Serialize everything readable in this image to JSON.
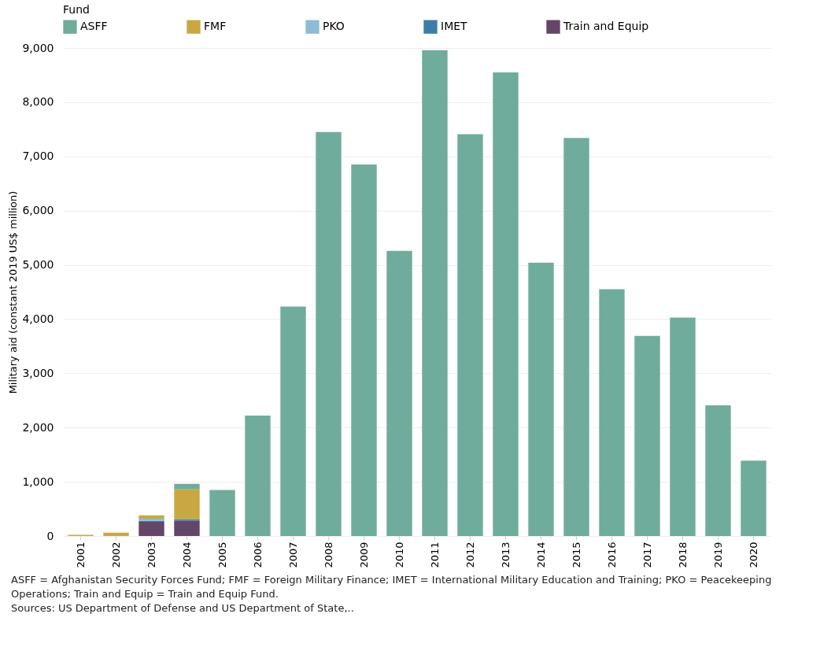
{
  "chart_data": {
    "type": "bar",
    "stacked": true,
    "ylabel": "Military aid (constant 2019 US$ million)",
    "legend_title": "Fund",
    "legend": "top",
    "grid": "y",
    "categories": [
      "2001",
      "2002",
      "2003",
      "2004",
      "2005",
      "2006",
      "2007",
      "2008",
      "2009",
      "2010",
      "2011",
      "2012",
      "2013",
      "2014",
      "2015",
      "2016",
      "2017",
      "2018",
      "2019",
      "2020"
    ],
    "series": [
      {
        "name": "Train and Equip",
        "color": "#644669",
        "values": [
          null,
          null,
          260,
          280,
          null,
          null,
          null,
          null,
          null,
          null,
          null,
          null,
          null,
          null,
          null,
          null,
          null,
          null,
          null,
          null
        ]
      },
      {
        "name": "IMET",
        "color": "#3d7ea6",
        "values": [
          null,
          null,
          20,
          30,
          null,
          null,
          null,
          null,
          null,
          null,
          null,
          null,
          null,
          null,
          null,
          null,
          null,
          null,
          null,
          null
        ]
      },
      {
        "name": "PKO",
        "color": "#8cbcd6",
        "values": [
          null,
          null,
          40,
          null,
          null,
          null,
          null,
          null,
          null,
          null,
          null,
          null,
          null,
          null,
          null,
          null,
          null,
          null,
          null,
          null
        ]
      },
      {
        "name": "FMF",
        "color": "#c9a844",
        "values": [
          20,
          60,
          60,
          550,
          null,
          null,
          null,
          null,
          null,
          null,
          null,
          null,
          null,
          null,
          null,
          null,
          null,
          null,
          null,
          null
        ]
      },
      {
        "name": "ASFF",
        "color": "#6fac9b",
        "values": [
          null,
          null,
          null,
          100,
          850,
          2220,
          4230,
          7450,
          6850,
          5260,
          8960,
          7410,
          8550,
          5040,
          7340,
          4550,
          3690,
          4030,
          2410,
          1390
        ]
      }
    ],
    "ylim": [
      0,
      9000
    ],
    "yticks": [
      0,
      {
        "value": 1000,
        "label": "1,000"
      },
      {
        "value": 2000,
        "label": "2,000"
      },
      {
        "value": 3000,
        "label": "3,000"
      },
      {
        "value": 4000,
        "label": "4,000"
      },
      {
        "value": 5000,
        "label": "5,000"
      },
      {
        "value": 6000,
        "label": "6,000"
      },
      {
        "value": 7000,
        "label": "7,000"
      },
      {
        "value": 8000,
        "label": "8,000"
      },
      {
        "value": 9000,
        "label": "9,000"
      }
    ],
    "annotations": [
      "ASFF = Afghanistan Security Forces Fund; FMF = Foreign Military Finance; IMET = International Military Education and Training; PKO = Peacekeeping Operations; Train and Equip = Train and Equip Fund.",
      "Sources: US Department of Defense and US Department of State,.."
    ]
  }
}
